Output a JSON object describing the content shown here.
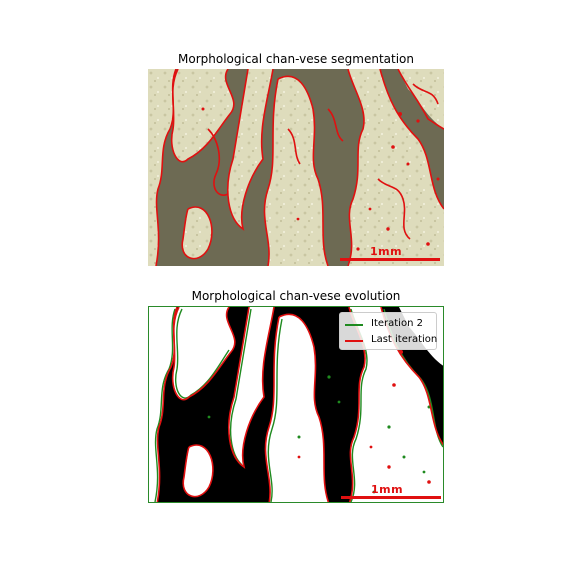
{
  "figure": {
    "top_title": "Morphological chan-vese segmentation",
    "bottom_title": "Morphological chan-vese evolution",
    "scalebar_label": "1mm",
    "legend": [
      {
        "label": "Iteration 2",
        "color": "#1f8a1f"
      },
      {
        "label": "Last iteration",
        "color": "#e01010"
      }
    ],
    "colors": {
      "contour": "#e01010",
      "iteration2": "#1f8a1f",
      "tissue_light": "#e6e6c6",
      "tissue_dark": "#6e6b55"
    }
  }
}
